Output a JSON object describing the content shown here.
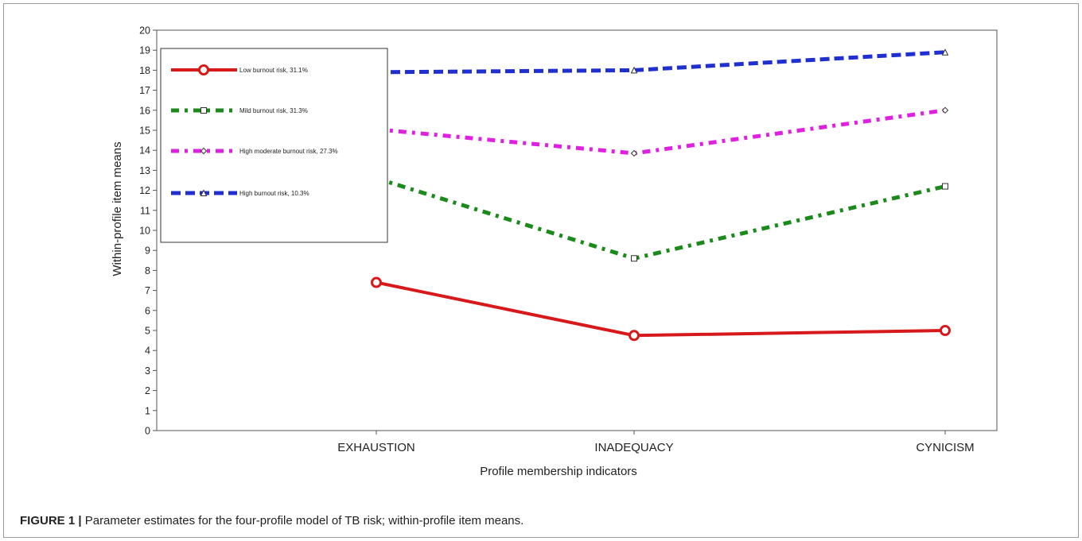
{
  "figure": {
    "label": "FIGURE 1 |",
    "caption": "Parameter estimates for the four-profile model of TB risk; within-profile item means."
  },
  "chart_data": {
    "type": "line",
    "title": "",
    "xlabel": "Profile membership indicators",
    "ylabel": "Within-profile item means",
    "categories": [
      "EXHAUSTION",
      "INADEQUACY",
      "CYNICISM"
    ],
    "ylim": [
      0,
      20
    ],
    "yticks": [
      0,
      1,
      2,
      3,
      4,
      5,
      6,
      7,
      8,
      9,
      10,
      11,
      12,
      13,
      14,
      15,
      16,
      17,
      18,
      19,
      20
    ],
    "grid": false,
    "legend_position": "top-left",
    "series": [
      {
        "name": "Low burnout risk, 31.1%",
        "values": [
          7.4,
          4.75,
          5.0
        ],
        "color": "#d7191c",
        "marker": "circle"
      },
      {
        "name": "Mild burnout risk, 31.3%",
        "values": [
          12.6,
          8.6,
          12.2
        ],
        "color": "#1a8a1a",
        "marker": "square"
      },
      {
        "name": "High moderate burnout risk, 27.3%",
        "values": [
          15.05,
          13.85,
          16.0
        ],
        "color": "#e020e0",
        "marker": "diamond"
      },
      {
        "name": "High burnout risk, 10.3%",
        "values": [
          17.9,
          18.0,
          18.9
        ],
        "color": "#1f2fd0",
        "marker": "triangle"
      }
    ]
  }
}
